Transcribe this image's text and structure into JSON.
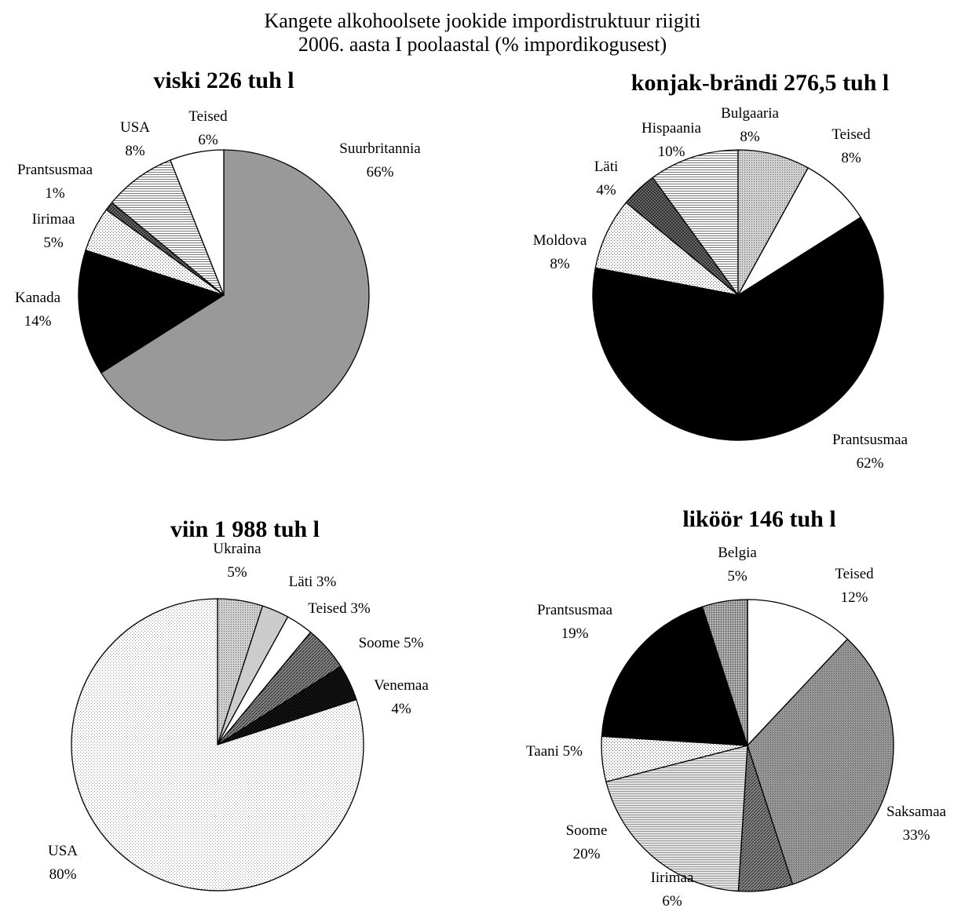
{
  "figure": {
    "title_line1": "Kangete alkohoolsete jookide impordistruktuur riigiti",
    "title_line2": "2006. aasta I poolaastal (% impordikogusest)"
  },
  "chart_data": [
    {
      "type": "pie",
      "title": "viski 226 tuh l",
      "start": "top, clockwise",
      "slices": [
        {
          "label": "Suurbritannia",
          "value": 66,
          "display": "66%",
          "fill": "#999999"
        },
        {
          "label": "Kanada",
          "value": 14,
          "display": "14%",
          "fill": "#000000"
        },
        {
          "label": "Iirimaa",
          "value": 5,
          "display": "5%",
          "fill": "pattern:dots-fine"
        },
        {
          "label": "Prantsusmaa",
          "value": 1,
          "display": "1%",
          "fill": "pattern:crosshatch-dark"
        },
        {
          "label": "USA",
          "value": 8,
          "display": "8%",
          "fill": "pattern:hlines"
        },
        {
          "label": "Teised",
          "value": 6,
          "display": "6%",
          "fill": "#ffffff"
        }
      ]
    },
    {
      "type": "pie",
      "title": "konjak-brändi 276,5 tuh l",
      "start": "starts after Teised (clockwise)",
      "slices": [
        {
          "label": "Teised",
          "value": 8,
          "display": "8%",
          "fill": "#ffffff"
        },
        {
          "label": "Prantsusmaa",
          "value": 62,
          "display": "62%",
          "fill": "#000000"
        },
        {
          "label": "Moldova",
          "value": 8,
          "display": "8%",
          "fill": "pattern:dots-fine"
        },
        {
          "label": "Läti",
          "value": 4,
          "display": "4%",
          "fill": "pattern:crosshatch-dark"
        },
        {
          "label": "Hispaania",
          "value": 10,
          "display": "10%",
          "fill": "pattern:hlines"
        },
        {
          "label": "Bulgaaria",
          "value": 8,
          "display": "8%",
          "fill": "pattern:dots-medium"
        }
      ]
    },
    {
      "type": "pie",
      "title": "viin 1 988 tuh l",
      "start": "top, clockwise",
      "slices": [
        {
          "label": "Ukraina",
          "value": 5,
          "display": "5%",
          "fill": "pattern:dots-medium"
        },
        {
          "label": "Läti",
          "value": 3,
          "display": "3%",
          "fill": "#cccccc"
        },
        {
          "label": "Teised",
          "value": 3,
          "display": "3%",
          "fill": "#ffffff"
        },
        {
          "label": "Soome",
          "value": 5,
          "display": "5%",
          "fill": "pattern:diag-dark"
        },
        {
          "label": "Venemaa",
          "value": 4,
          "display": "4%",
          "fill": "pattern:crosshatch-black"
        },
        {
          "label": "USA",
          "value": 80,
          "display": "80%",
          "fill": "pattern:dots-light"
        }
      ]
    },
    {
      "type": "pie",
      "title": "liköör 146 tuh l",
      "start": "top, clockwise",
      "slices": [
        {
          "label": "Teised",
          "value": 12,
          "display": "12%",
          "fill": "#ffffff"
        },
        {
          "label": "Saksamaa",
          "value": 33,
          "display": "33%",
          "fill": "pattern:dots-dark"
        },
        {
          "label": "Iirimaa",
          "value": 6,
          "display": "6%",
          "fill": "pattern:diag-dark"
        },
        {
          "label": "Soome",
          "value": 20,
          "display": "20%",
          "fill": "pattern:hlines-light"
        },
        {
          "label": "Taani",
          "value": 5,
          "display": "5%",
          "fill": "pattern:dots-fine"
        },
        {
          "label": "Prantsusmaa",
          "value": 19,
          "display": "19%",
          "fill": "#000000"
        },
        {
          "label": "Belgia",
          "value": 5,
          "display": "5%",
          "fill": "pattern:grid-dark"
        }
      ]
    }
  ]
}
